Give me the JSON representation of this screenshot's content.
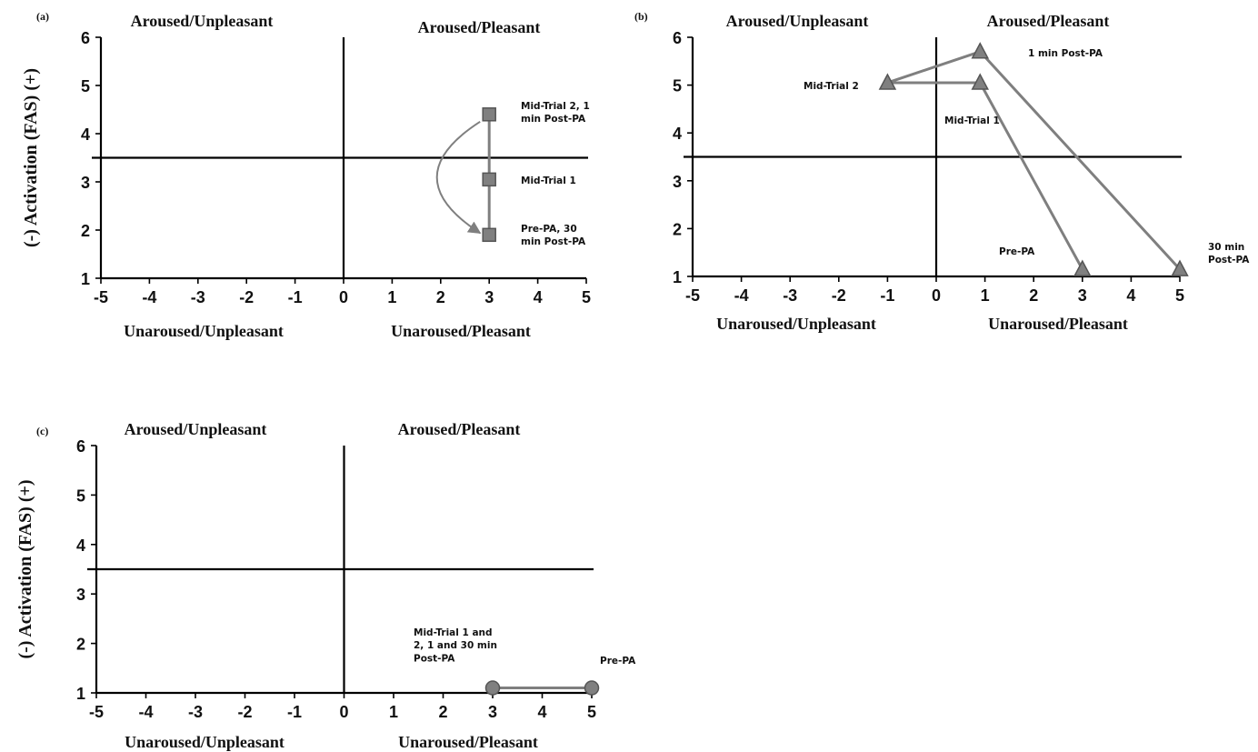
{
  "chart_data": [
    {
      "type": "line",
      "panel_label": "(a)",
      "ylabel": "(-) Activation (FAS) (+)",
      "xlim": [
        -5,
        5
      ],
      "ylim": [
        1,
        6
      ],
      "x_ticks": [
        "-5",
        "-4",
        "-3",
        "-2",
        "-1",
        "0",
        "1",
        "2",
        "3",
        "4",
        "5"
      ],
      "y_ticks": [
        "1",
        "2",
        "3",
        "4",
        "5",
        "6"
      ],
      "quadrant_labels": {
        "top_left": "Aroused/Unpleasant",
        "top_right": "Aroused/Pleasant",
        "bottom_left": "Unaroused/Unpleasant",
        "bottom_right": "Unaroused/Pleasant"
      },
      "reference_lines": {
        "x": 0,
        "y": 3.5
      },
      "marker": "square",
      "points": [
        {
          "x": 3,
          "y": 4.4,
          "label": "Mid-Trial 2, 1\nmin Post-PA"
        },
        {
          "x": 3,
          "y": 3.05,
          "label": "Mid-Trial 1"
        },
        {
          "x": 3,
          "y": 1.9,
          "label": "Pre-PA, 30\nmin Post-PA"
        }
      ],
      "path": [
        [
          3,
          1.9
        ],
        [
          3,
          3.05
        ],
        [
          3,
          4.4
        ]
      ],
      "arrow": {
        "from": [
          3,
          4.4
        ],
        "to": [
          3,
          1.9
        ]
      }
    },
    {
      "type": "line",
      "panel_label": "(b)",
      "ylabel": "",
      "xlim": [
        -5,
        5
      ],
      "ylim": [
        1,
        6
      ],
      "x_ticks": [
        "-5",
        "-4",
        "-3",
        "-2",
        "-1",
        "0",
        "1",
        "2",
        "3",
        "4",
        "5"
      ],
      "y_ticks": [
        "1",
        "2",
        "3",
        "4",
        "5",
        "6"
      ],
      "quadrant_labels": {
        "top_left": "Aroused/Unpleasant",
        "top_right": "Aroused/Pleasant",
        "bottom_left": "Unaroused/Unpleasant",
        "bottom_right": "Unaroused/Pleasant"
      },
      "reference_lines": {
        "x": 0,
        "y": 3.5
      },
      "marker": "triangle",
      "points": [
        {
          "x": 3,
          "y": 1.15,
          "label": "Pre-PA"
        },
        {
          "x": 0.9,
          "y": 5.05,
          "label": "Mid-Trial 1"
        },
        {
          "x": -1,
          "y": 5.05,
          "label": "Mid-Trial 2"
        },
        {
          "x": 0.9,
          "y": 5.7,
          "label": "1 min Post-PA"
        },
        {
          "x": 5,
          "y": 1.15,
          "label": "30 min\nPost-PA"
        }
      ],
      "path": [
        [
          3,
          1.15
        ],
        [
          0.9,
          5.05
        ],
        [
          -1,
          5.05
        ],
        [
          0.9,
          5.7
        ],
        [
          5,
          1.15
        ]
      ]
    },
    {
      "type": "line",
      "panel_label": "(c)",
      "ylabel": "(-) Activation (FAS) (+)",
      "xlim": [
        -5,
        5
      ],
      "ylim": [
        1,
        6
      ],
      "x_ticks": [
        "-5",
        "-4",
        "-3",
        "-2",
        "-1",
        "0",
        "1",
        "2",
        "3",
        "4",
        "5"
      ],
      "y_ticks": [
        "1",
        "2",
        "3",
        "4",
        "5",
        "6"
      ],
      "quadrant_labels": {
        "top_left": "Aroused/Unpleasant",
        "top_right": "Aroused/Pleasant",
        "bottom_left": "Unaroused/Unpleasant",
        "bottom_right": "Unaroused/Pleasant"
      },
      "reference_lines": {
        "x": 0,
        "y": 3.5
      },
      "marker": "circle",
      "points": [
        {
          "x": 5,
          "y": 1.1,
          "label": "Pre-PA"
        },
        {
          "x": 3,
          "y": 1.1,
          "label": "Mid-Trial 1 and\n2, 1 and 30 min\nPost-PA"
        }
      ],
      "path": [
        [
          5,
          1.1
        ],
        [
          3,
          1.1
        ]
      ]
    }
  ],
  "colors": {
    "axis": "#000000",
    "series_line": "#7f7f7f",
    "marker_fill": "#808080",
    "marker_stroke": "#555555"
  }
}
